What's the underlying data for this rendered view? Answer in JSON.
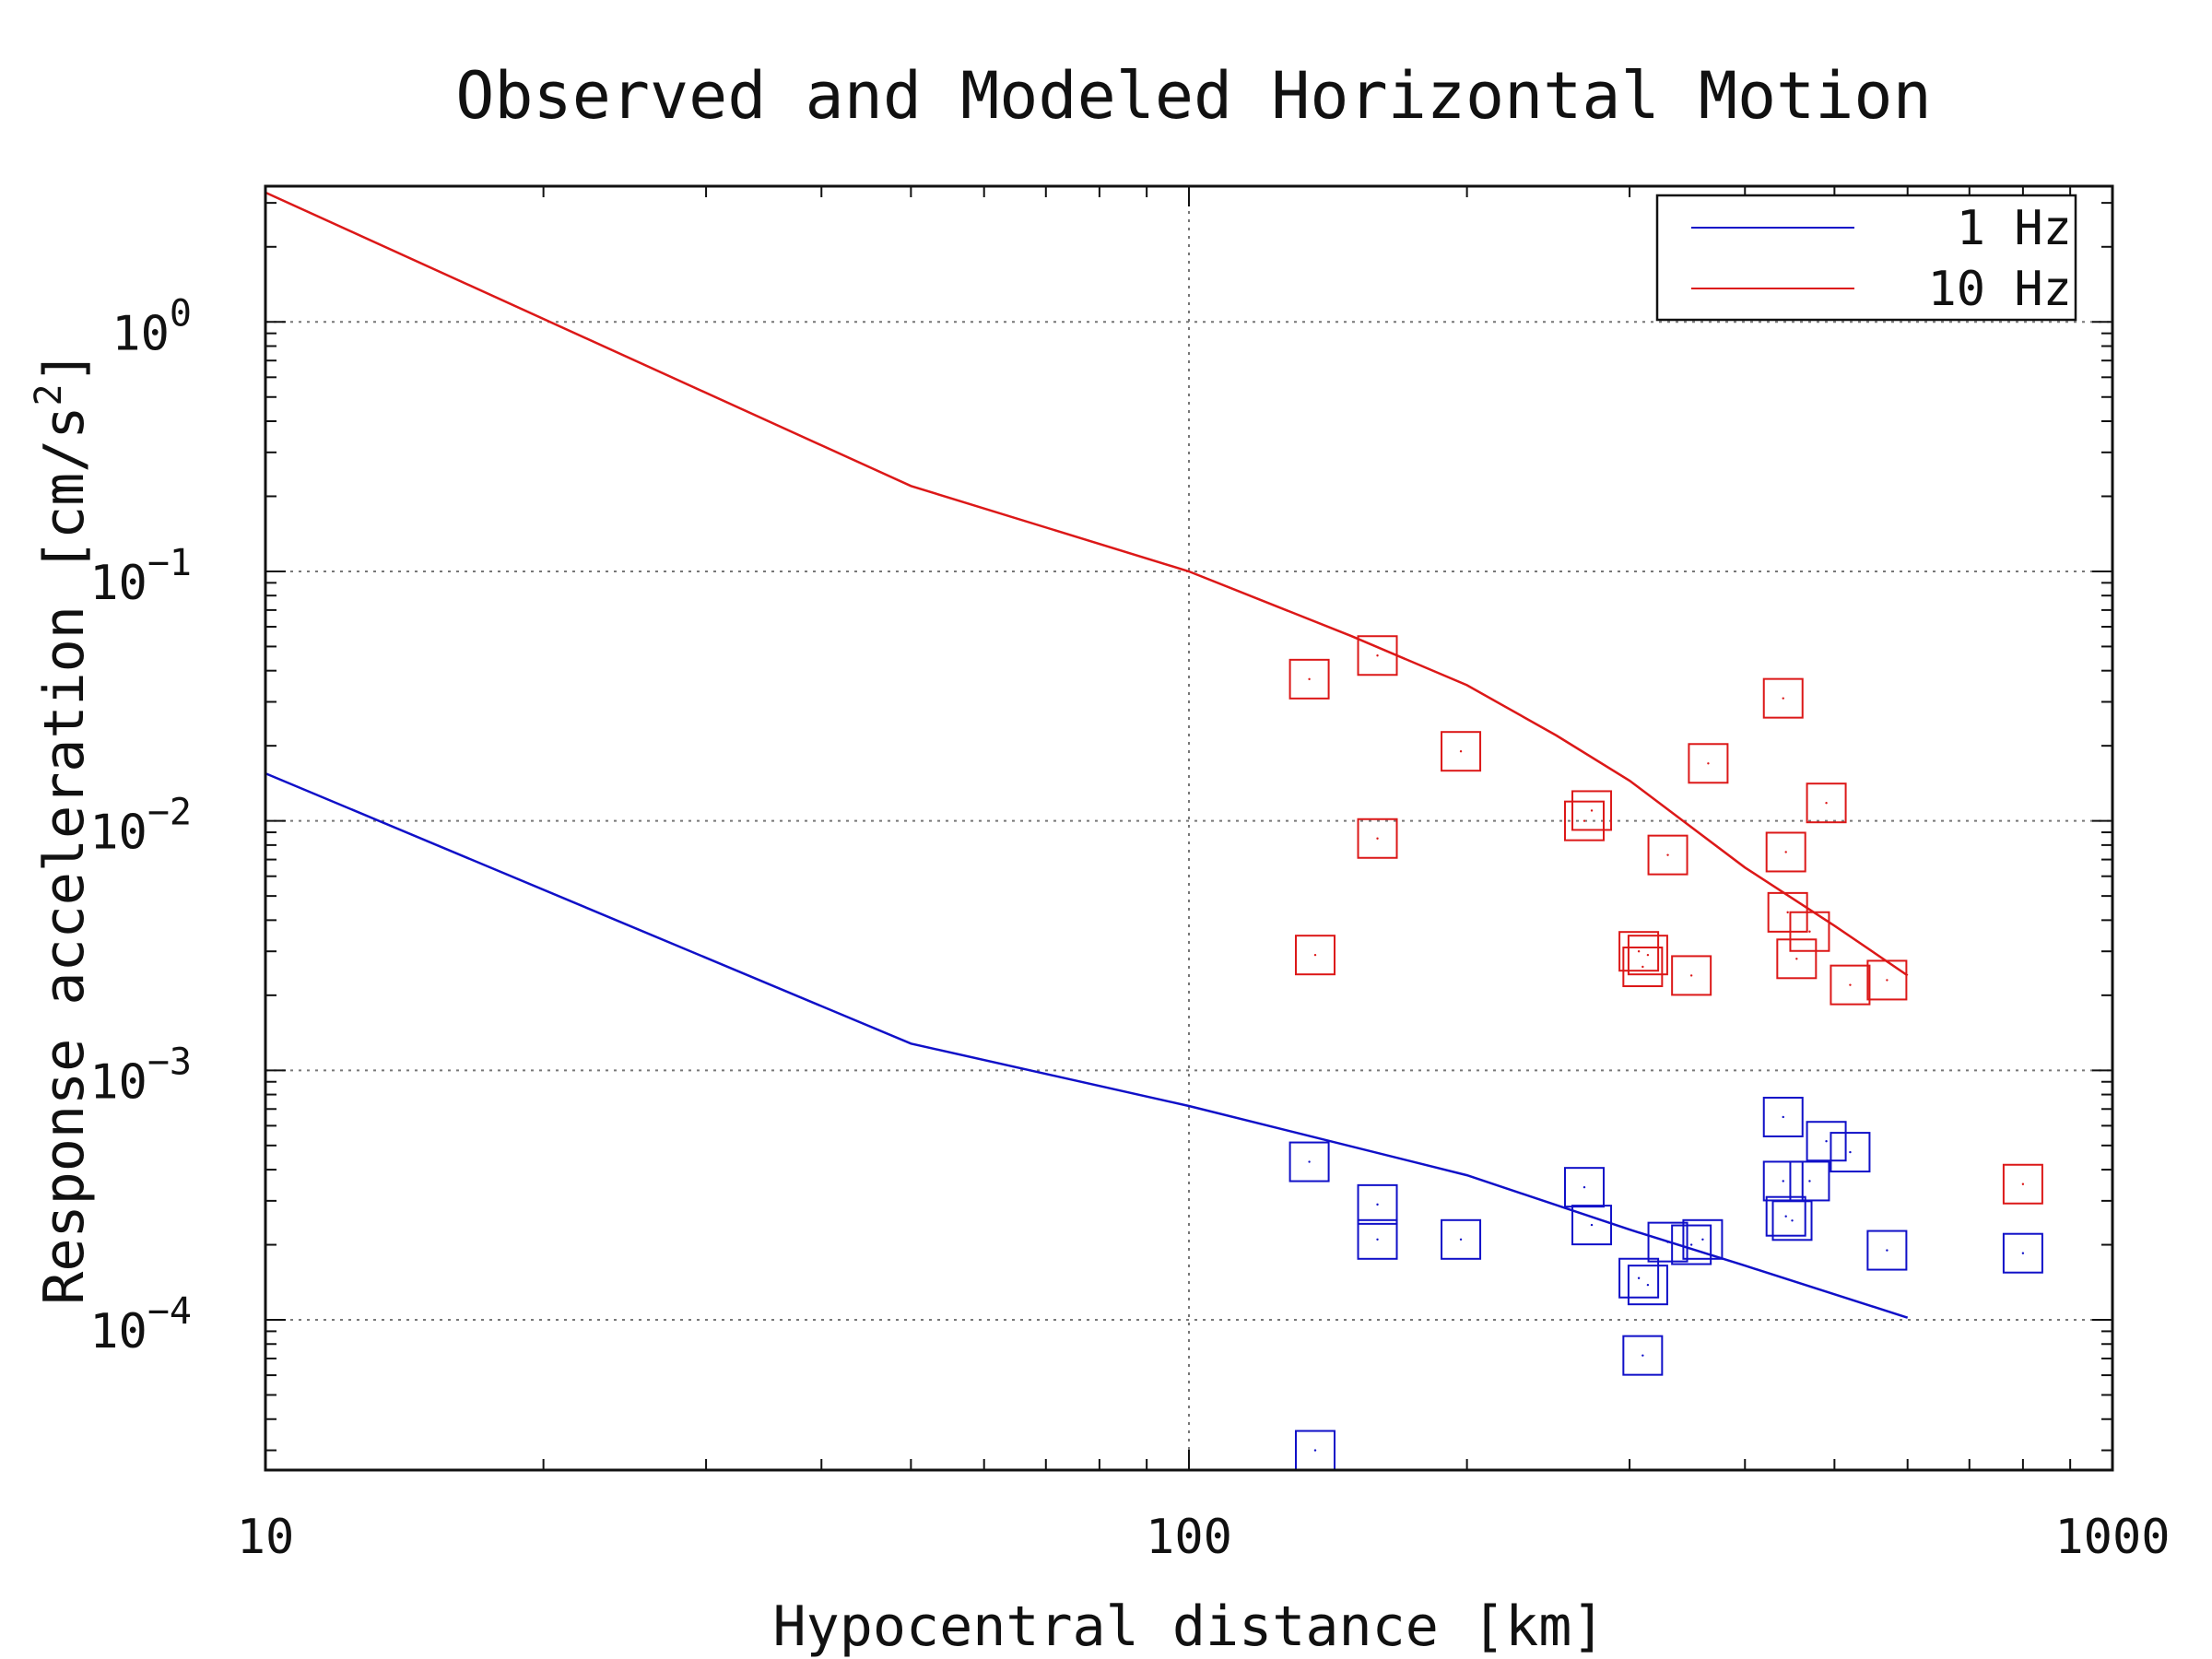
{
  "chart_data": {
    "type": "scatter",
    "title": "Observed and Modeled Horizontal Motion",
    "xlabel": "Hypocentral distance [km]",
    "ylabel_main": "Response acceleration [cm/s",
    "ylabel_sup": "2",
    "ylabel_close": "]",
    "xscale": "log",
    "yscale": "log",
    "xlim": [
      10,
      1000
    ],
    "ylim": [
      2.5e-05,
      3.5
    ],
    "x_ticks": [
      {
        "value": 10,
        "label": "10"
      },
      {
        "value": 100,
        "label": "100"
      },
      {
        "value": 1000,
        "label": "1000"
      }
    ],
    "y_ticks": [
      {
        "value": 1,
        "base": "10",
        "exp": "0"
      },
      {
        "value": 0.1,
        "base": "10",
        "exp": "−1"
      },
      {
        "value": 0.01,
        "base": "10",
        "exp": "−2"
      },
      {
        "value": 0.001,
        "base": "10",
        "exp": "−3"
      },
      {
        "value": 0.0001,
        "base": "10",
        "exp": "−4"
      }
    ],
    "grid": true,
    "legend_position": "top-right",
    "series": [
      {
        "name": "1 Hz",
        "color": "#1010c8",
        "model": [
          [
            10,
            0.0155
          ],
          [
            50,
            0.00128
          ],
          [
            100,
            0.00072
          ],
          [
            200,
            0.00038
          ],
          [
            300,
            0.00023
          ],
          [
            400,
            0.000165
          ],
          [
            600,
            0.000102
          ]
        ],
        "observed": [
          [
            135,
            0.00043
          ],
          [
            137,
            3e-05
          ],
          [
            160,
            0.00029
          ],
          [
            160,
            0.00021
          ],
          [
            197,
            0.00021
          ],
          [
            268,
            0.00034
          ],
          [
            273,
            0.00024
          ],
          [
            307,
            0.000147
          ],
          [
            310,
            7.2e-05
          ],
          [
            314,
            0.000138
          ],
          [
            330,
            0.000205
          ],
          [
            350,
            0.0002
          ],
          [
            360,
            0.00021
          ],
          [
            440,
            0.00065
          ],
          [
            440,
            0.00036
          ],
          [
            443,
            0.00026
          ],
          [
            450,
            0.00025
          ],
          [
            470,
            0.00036
          ],
          [
            490,
            0.00052
          ],
          [
            520,
            0.00047
          ],
          [
            570,
            0.00019
          ],
          [
            800,
            0.000185
          ]
        ]
      },
      {
        "name": "10 Hz",
        "color": "#dc1818",
        "model": [
          [
            10,
            3.3
          ],
          [
            50,
            0.22
          ],
          [
            100,
            0.1
          ],
          [
            150,
            0.055
          ],
          [
            200,
            0.035
          ],
          [
            250,
            0.022
          ],
          [
            300,
            0.0145
          ],
          [
            400,
            0.0065
          ],
          [
            500,
            0.0038
          ],
          [
            600,
            0.0024
          ]
        ],
        "observed": [
          [
            135,
            0.037
          ],
          [
            137,
            0.0029
          ],
          [
            160,
            0.046
          ],
          [
            160,
            0.0085
          ],
          [
            197,
            0.019
          ],
          [
            268,
            0.01
          ],
          [
            273,
            0.011
          ],
          [
            307,
            0.003
          ],
          [
            310,
            0.0026
          ],
          [
            314,
            0.0029
          ],
          [
            330,
            0.0073
          ],
          [
            350,
            0.0024
          ],
          [
            365,
            0.017
          ],
          [
            440,
            0.031
          ],
          [
            443,
            0.0075
          ],
          [
            445,
            0.0043
          ],
          [
            455,
            0.0028
          ],
          [
            470,
            0.0036
          ],
          [
            490,
            0.0118
          ],
          [
            520,
            0.0022
          ],
          [
            570,
            0.0023
          ],
          [
            800,
            0.00035
          ]
        ]
      }
    ]
  }
}
